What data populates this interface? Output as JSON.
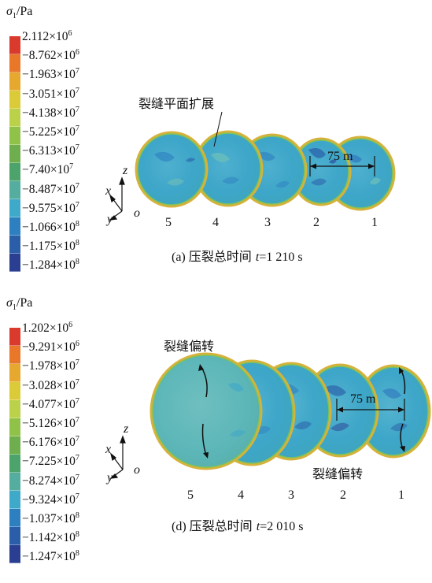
{
  "panel_a": {
    "legend_title": "σ",
    "legend_title_sub": "1",
    "legend_title_unit": "/Pa",
    "legend_labels": [
      {
        "mant": "2.112×10",
        "exp": "6",
        "neg": false
      },
      {
        "mant": "8.762×10",
        "exp": "6",
        "neg": true
      },
      {
        "mant": "1.963×10",
        "exp": "7",
        "neg": true
      },
      {
        "mant": "3.051×10",
        "exp": "7",
        "neg": true
      },
      {
        "mant": "4.138×10",
        "exp": "7",
        "neg": true
      },
      {
        "mant": "5.225×10",
        "exp": "7",
        "neg": true
      },
      {
        "mant": "6.313×10",
        "exp": "7",
        "neg": true
      },
      {
        "mant": "7.40×10",
        "exp": "7",
        "neg": true
      },
      {
        "mant": "8.487×10",
        "exp": "7",
        "neg": true
      },
      {
        "mant": "9.575×10",
        "exp": "7",
        "neg": true
      },
      {
        "mant": "1.066×10",
        "exp": "8",
        "neg": true
      },
      {
        "mant": "1.175×10",
        "exp": "8",
        "neg": true
      },
      {
        "mant": "1.284×10",
        "exp": "8",
        "neg": true
      }
    ],
    "annotation": "裂缝平面扩展",
    "dimension": "75 m",
    "fracture_numbers": [
      "5",
      "4",
      "3",
      "2",
      "1"
    ],
    "caption_prefix": "(a) ",
    "caption_cn": "压裂总时间 ",
    "caption_var": "t",
    "caption_value": "=1 210 s"
  },
  "panel_d": {
    "legend_title": "σ",
    "legend_title_sub": "1",
    "legend_title_unit": "/Pa",
    "legend_labels": [
      {
        "mant": "1.202×10",
        "exp": "6",
        "neg": false
      },
      {
        "mant": "9.291×10",
        "exp": "6",
        "neg": true
      },
      {
        "mant": "1.978×10",
        "exp": "7",
        "neg": true
      },
      {
        "mant": "3.028×10",
        "exp": "7",
        "neg": true
      },
      {
        "mant": "4.077×10",
        "exp": "7",
        "neg": true
      },
      {
        "mant": "5.126×10",
        "exp": "7",
        "neg": true
      },
      {
        "mant": "6.176×10",
        "exp": "7",
        "neg": true
      },
      {
        "mant": "7.225×10",
        "exp": "7",
        "neg": true
      },
      {
        "mant": "8.274×10",
        "exp": "7",
        "neg": true
      },
      {
        "mant": "9.324×10",
        "exp": "7",
        "neg": true
      },
      {
        "mant": "1.037×10",
        "exp": "8",
        "neg": true
      },
      {
        "mant": "1.142×10",
        "exp": "8",
        "neg": true
      },
      {
        "mant": "1.247×10",
        "exp": "8",
        "neg": true
      }
    ],
    "annotation_left": "裂缝偏转",
    "annotation_right": "裂缝偏转",
    "dimension": "75 m",
    "fracture_numbers": [
      "5",
      "4",
      "3",
      "2",
      "1"
    ],
    "caption_prefix": "(d) ",
    "caption_cn": "压裂总时间 ",
    "caption_var": "t",
    "caption_value": "=2 010 s"
  },
  "axes": {
    "z": "z",
    "x": "x",
    "y": "y",
    "o": "o"
  },
  "legend_colors": [
    "#d93a2b",
    "#e8772a",
    "#e7a830",
    "#dccb38",
    "#bcd14a",
    "#90c24a",
    "#6eae4e",
    "#4da36c",
    "#54ad9f",
    "#3ea9c9",
    "#2d7fc0",
    "#2a5ea8",
    "#2b3f92"
  ]
}
